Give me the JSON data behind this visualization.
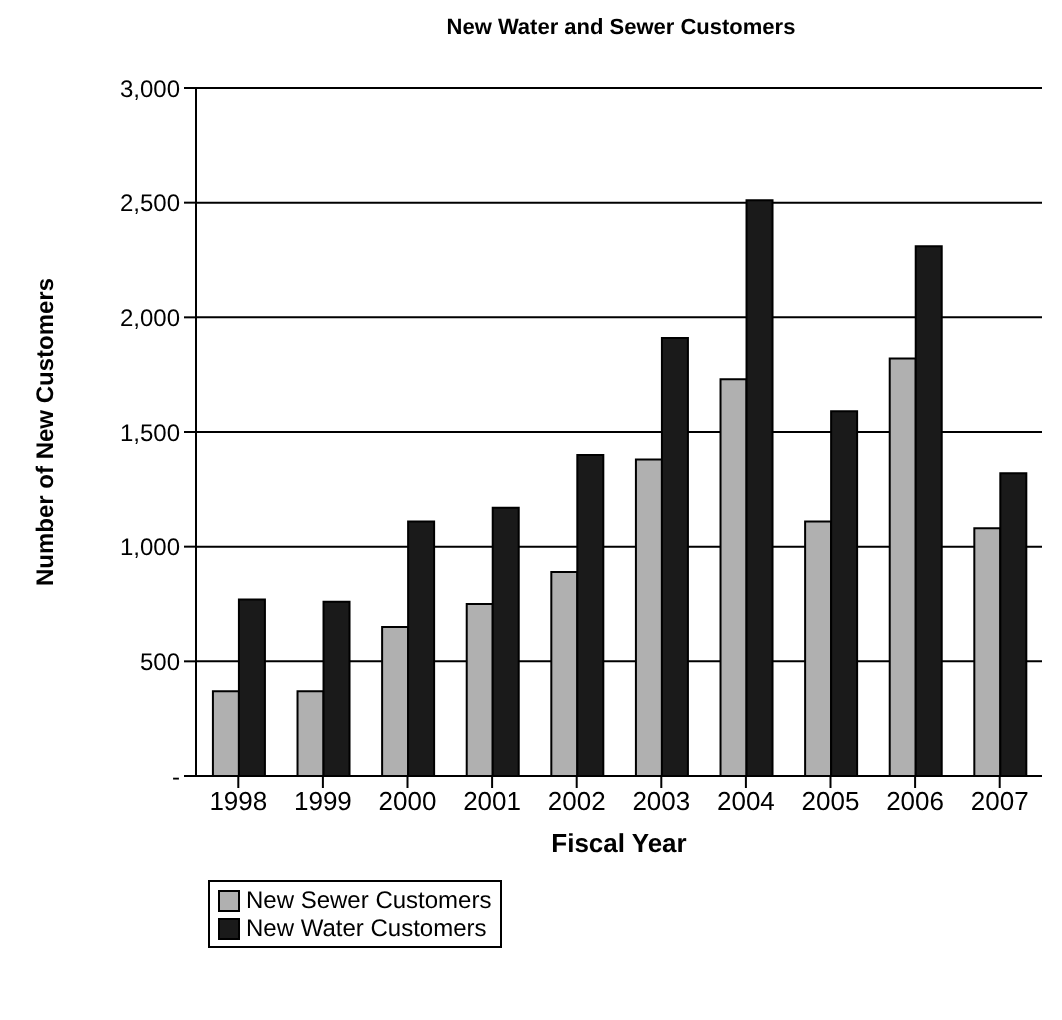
{
  "chart_data": {
    "type": "bar",
    "title": "New Water and Sewer Customers",
    "xlabel": "Fiscal Year",
    "ylabel": "Number of New Customers",
    "categories": [
      "1998",
      "1999",
      "2000",
      "2001",
      "2002",
      "2003",
      "2004",
      "2005",
      "2006",
      "2007"
    ],
    "series": [
      {
        "name": "New Sewer Customers",
        "color": "#b0b0b0",
        "values": [
          370,
          370,
          650,
          750,
          890,
          1380,
          1730,
          1110,
          1820,
          1080
        ]
      },
      {
        "name": "New Water Customers",
        "color": "#1a1a1a",
        "values": [
          770,
          760,
          1110,
          1170,
          1400,
          1910,
          2510,
          1590,
          2310,
          1320
        ]
      }
    ],
    "ylim": [
      0,
      3000
    ],
    "yticks": [
      {
        "value": 0,
        "label": "-"
      },
      {
        "value": 500,
        "label": "500"
      },
      {
        "value": 1000,
        "label": "1,000"
      },
      {
        "value": 1500,
        "label": "1,500"
      },
      {
        "value": 2000,
        "label": "2,000"
      },
      {
        "value": 2500,
        "label": "2,500"
      },
      {
        "value": 3000,
        "label": "3,000"
      }
    ],
    "grid": "y",
    "legend": "bottom left"
  }
}
